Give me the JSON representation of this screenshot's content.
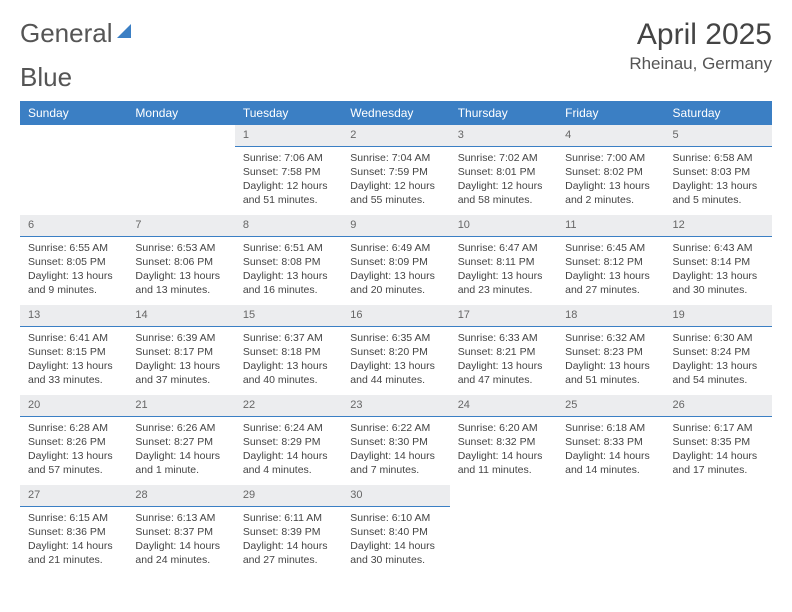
{
  "logo": {
    "part1": "General",
    "part2": "Blue"
  },
  "title": "April 2025",
  "subtitle": "Rheinau, Germany",
  "colors": {
    "brand": "#3b7fc4",
    "daybg": "#ecedef",
    "text": "#444"
  },
  "dayHeaders": [
    "Sunday",
    "Monday",
    "Tuesday",
    "Wednesday",
    "Thursday",
    "Friday",
    "Saturday"
  ],
  "weeks": [
    [
      null,
      null,
      {
        "n": "1",
        "sr": "7:06 AM",
        "ss": "7:58 PM",
        "dl": "12 hours and 51 minutes."
      },
      {
        "n": "2",
        "sr": "7:04 AM",
        "ss": "7:59 PM",
        "dl": "12 hours and 55 minutes."
      },
      {
        "n": "3",
        "sr": "7:02 AM",
        "ss": "8:01 PM",
        "dl": "12 hours and 58 minutes."
      },
      {
        "n": "4",
        "sr": "7:00 AM",
        "ss": "8:02 PM",
        "dl": "13 hours and 2 minutes."
      },
      {
        "n": "5",
        "sr": "6:58 AM",
        "ss": "8:03 PM",
        "dl": "13 hours and 5 minutes."
      }
    ],
    [
      {
        "n": "6",
        "sr": "6:55 AM",
        "ss": "8:05 PM",
        "dl": "13 hours and 9 minutes."
      },
      {
        "n": "7",
        "sr": "6:53 AM",
        "ss": "8:06 PM",
        "dl": "13 hours and 13 minutes."
      },
      {
        "n": "8",
        "sr": "6:51 AM",
        "ss": "8:08 PM",
        "dl": "13 hours and 16 minutes."
      },
      {
        "n": "9",
        "sr": "6:49 AM",
        "ss": "8:09 PM",
        "dl": "13 hours and 20 minutes."
      },
      {
        "n": "10",
        "sr": "6:47 AM",
        "ss": "8:11 PM",
        "dl": "13 hours and 23 minutes."
      },
      {
        "n": "11",
        "sr": "6:45 AM",
        "ss": "8:12 PM",
        "dl": "13 hours and 27 minutes."
      },
      {
        "n": "12",
        "sr": "6:43 AM",
        "ss": "8:14 PM",
        "dl": "13 hours and 30 minutes."
      }
    ],
    [
      {
        "n": "13",
        "sr": "6:41 AM",
        "ss": "8:15 PM",
        "dl": "13 hours and 33 minutes."
      },
      {
        "n": "14",
        "sr": "6:39 AM",
        "ss": "8:17 PM",
        "dl": "13 hours and 37 minutes."
      },
      {
        "n": "15",
        "sr": "6:37 AM",
        "ss": "8:18 PM",
        "dl": "13 hours and 40 minutes."
      },
      {
        "n": "16",
        "sr": "6:35 AM",
        "ss": "8:20 PM",
        "dl": "13 hours and 44 minutes."
      },
      {
        "n": "17",
        "sr": "6:33 AM",
        "ss": "8:21 PM",
        "dl": "13 hours and 47 minutes."
      },
      {
        "n": "18",
        "sr": "6:32 AM",
        "ss": "8:23 PM",
        "dl": "13 hours and 51 minutes."
      },
      {
        "n": "19",
        "sr": "6:30 AM",
        "ss": "8:24 PM",
        "dl": "13 hours and 54 minutes."
      }
    ],
    [
      {
        "n": "20",
        "sr": "6:28 AM",
        "ss": "8:26 PM",
        "dl": "13 hours and 57 minutes."
      },
      {
        "n": "21",
        "sr": "6:26 AM",
        "ss": "8:27 PM",
        "dl": "14 hours and 1 minute."
      },
      {
        "n": "22",
        "sr": "6:24 AM",
        "ss": "8:29 PM",
        "dl": "14 hours and 4 minutes."
      },
      {
        "n": "23",
        "sr": "6:22 AM",
        "ss": "8:30 PM",
        "dl": "14 hours and 7 minutes."
      },
      {
        "n": "24",
        "sr": "6:20 AM",
        "ss": "8:32 PM",
        "dl": "14 hours and 11 minutes."
      },
      {
        "n": "25",
        "sr": "6:18 AM",
        "ss": "8:33 PM",
        "dl": "14 hours and 14 minutes."
      },
      {
        "n": "26",
        "sr": "6:17 AM",
        "ss": "8:35 PM",
        "dl": "14 hours and 17 minutes."
      }
    ],
    [
      {
        "n": "27",
        "sr": "6:15 AM",
        "ss": "8:36 PM",
        "dl": "14 hours and 21 minutes."
      },
      {
        "n": "28",
        "sr": "6:13 AM",
        "ss": "8:37 PM",
        "dl": "14 hours and 24 minutes."
      },
      {
        "n": "29",
        "sr": "6:11 AM",
        "ss": "8:39 PM",
        "dl": "14 hours and 27 minutes."
      },
      {
        "n": "30",
        "sr": "6:10 AM",
        "ss": "8:40 PM",
        "dl": "14 hours and 30 minutes."
      },
      null,
      null,
      null
    ]
  ],
  "labels": {
    "sunrise": "Sunrise: ",
    "sunset": "Sunset: ",
    "daylight": "Daylight: "
  }
}
